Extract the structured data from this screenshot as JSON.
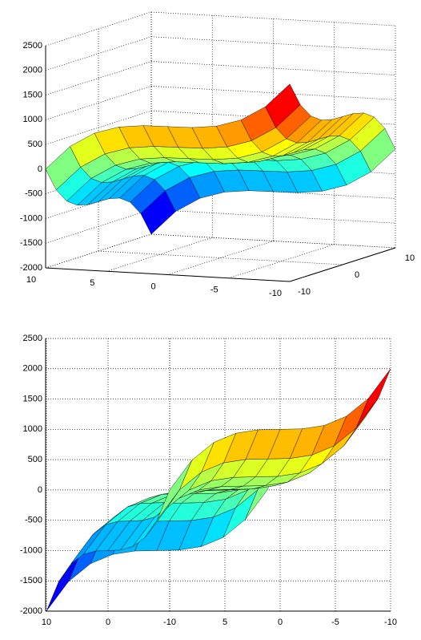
{
  "chart_data": {
    "type": "surface",
    "colormap": "jet",
    "grid": true,
    "x": [
      -10,
      -8,
      -6,
      -4,
      -2,
      0,
      2,
      4,
      6,
      8,
      10
    ],
    "y": [
      -10,
      -8,
      -6,
      -4,
      -2,
      0,
      2,
      4,
      6,
      8,
      10
    ],
    "z": [
      [
        2000,
        1512,
        1216,
        1064,
        1008,
        1000,
        992,
        936,
        784,
        488,
        0
      ],
      [
        1512,
        1024,
        728,
        576,
        520,
        512,
        504,
        448,
        296,
        0,
        -488
      ],
      [
        1216,
        728,
        432,
        280,
        224,
        216,
        208,
        152,
        0,
        -296,
        -784
      ],
      [
        1064,
        576,
        280,
        128,
        72,
        64,
        56,
        0,
        -152,
        -448,
        -936
      ],
      [
        1008,
        520,
        224,
        72,
        16,
        8,
        0,
        -56,
        -208,
        -504,
        -992
      ],
      [
        1000,
        512,
        216,
        64,
        8,
        0,
        -8,
        -64,
        -216,
        -512,
        -1000
      ],
      [
        992,
        504,
        208,
        56,
        0,
        -8,
        -16,
        -72,
        -224,
        -520,
        -1008
      ],
      [
        936,
        448,
        152,
        0,
        -56,
        -64,
        -72,
        -128,
        -280,
        -576,
        -1064
      ],
      [
        784,
        296,
        0,
        -152,
        -208,
        -216,
        -224,
        -280,
        -432,
        -728,
        -1216
      ],
      [
        488,
        0,
        -296,
        -448,
        -504,
        -512,
        -520,
        -576,
        -728,
        -1024,
        -1512
      ],
      [
        0,
        -488,
        -784,
        -936,
        -992,
        -1000,
        -1008,
        -1064,
        -1216,
        -1512,
        -2000
      ]
    ],
    "xlim": [
      -10,
      10
    ],
    "ylim": [
      -10,
      10
    ],
    "zlim": [
      -2000,
      2500
    ],
    "xticks": [
      -10,
      -5,
      0,
      5,
      10
    ],
    "yticks": [
      -10,
      0,
      10
    ],
    "zticks": [
      -2000,
      -1500,
      -1000,
      -500,
      0,
      500,
      1000,
      1500,
      2000,
      2500
    ]
  }
}
